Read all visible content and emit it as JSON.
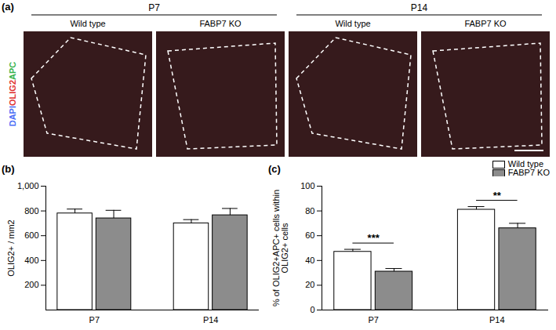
{
  "panel_a": {
    "label": "(a)",
    "groups": [
      {
        "name": "P7",
        "columns": [
          "Wild type",
          "FABP7 KO"
        ]
      },
      {
        "name": "P14",
        "columns": [
          "Wild type",
          "FABP7 KO"
        ]
      }
    ],
    "stains": [
      {
        "name": "DAPI",
        "color": "#4c6ef5"
      },
      {
        "name": "OLIG2",
        "color": "#e03131"
      },
      {
        "name": "APC",
        "color": "#37b24d"
      }
    ]
  },
  "chart_data": [
    {
      "type": "bar",
      "title": "(b)",
      "y_label": "OLIG2+ / mm2",
      "categories": [
        "P7",
        "P14"
      ],
      "series": [
        {
          "name": "Wild type",
          "color": "#ffffff",
          "values": [
            780,
            700
          ],
          "errors": [
            35,
            30
          ]
        },
        {
          "name": "FABP7 KO",
          "color": "#8c8c8c",
          "values": [
            740,
            765
          ],
          "errors": [
            65,
            55
          ]
        }
      ],
      "ylim": [
        0,
        1000
      ],
      "yticks": [
        200,
        400,
        600,
        800,
        1000
      ],
      "grid": false
    },
    {
      "type": "bar",
      "title": "(c)",
      "y_label": "% of OLIG2+APC+ cells within\nOLIG2+ cells",
      "categories": [
        "P7",
        "P14"
      ],
      "series": [
        {
          "name": "Wild type",
          "color": "#ffffff",
          "values": [
            47,
            81
          ],
          "errors": [
            2,
            2.5
          ]
        },
        {
          "name": "FABP7 KO",
          "color": "#8c8c8c",
          "values": [
            31,
            66
          ],
          "errors": [
            2.5,
            4
          ]
        }
      ],
      "ylim": [
        0,
        100
      ],
      "yticks": [
        0,
        20,
        40,
        60,
        80,
        100
      ],
      "grid": false,
      "legend": "top-right",
      "annotations": [
        {
          "category": "P7",
          "text": "***"
        },
        {
          "category": "P14",
          "text": "**"
        }
      ]
    }
  ]
}
